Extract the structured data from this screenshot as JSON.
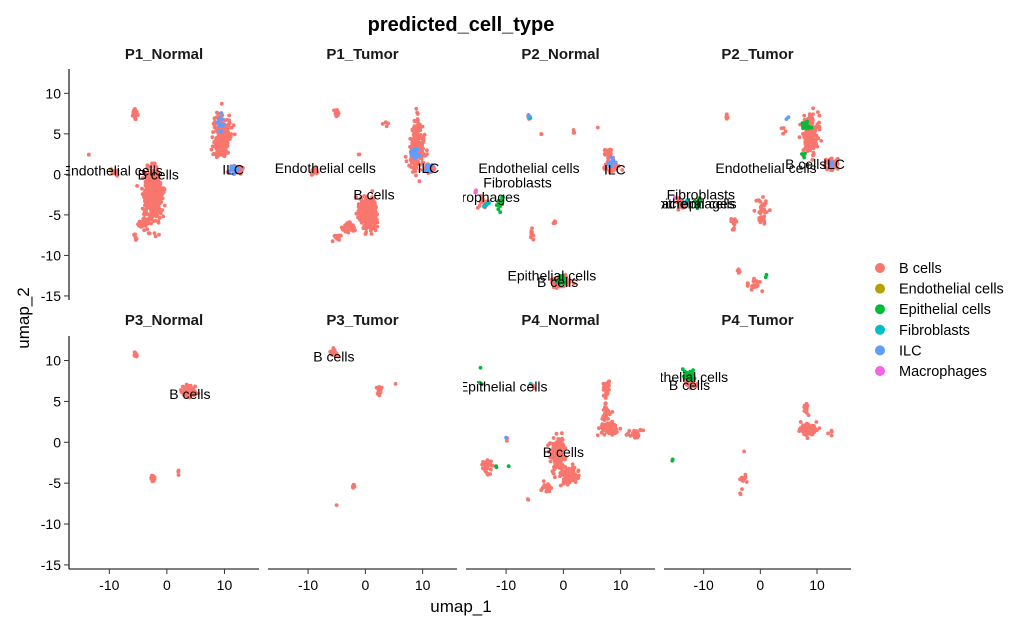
{
  "chart_data": {
    "type": "scatter",
    "title": "predicted_cell_type",
    "xlabel": "umap_1",
    "ylabel": "umap_2",
    "xlim": [
      -17,
      16
    ],
    "ylim": [
      -15.5,
      13
    ],
    "x_ticks": [
      -10,
      0,
      10
    ],
    "y_ticks": [
      10,
      5,
      0,
      -5,
      -10,
      -15
    ],
    "legend": {
      "position": "right",
      "entries": [
        {
          "label": "B cells",
          "color": "#F8766D"
        },
        {
          "label": "Endothelial cells",
          "color": "#B79F00"
        },
        {
          "label": "Epithelial cells",
          "color": "#00BA38"
        },
        {
          "label": "Fibroblasts",
          "color": "#00BFC4"
        },
        {
          "label": "ILC",
          "color": "#619CFF"
        },
        {
          "label": "Macrophages",
          "color": "#F564E3"
        }
      ]
    },
    "panels": [
      {
        "name": "P1_Normal",
        "clusters": [
          {
            "type": "B cells",
            "x": -5.5,
            "y": 7.5,
            "sx": 0.3,
            "sy": 0.5,
            "n": 40
          },
          {
            "type": "B cells",
            "x": -2.5,
            "y": -2.5,
            "sx": 1.4,
            "sy": 2.8,
            "n": 450
          },
          {
            "type": "B cells",
            "x": -4,
            "y": -6,
            "sx": 1.0,
            "sy": 0.4,
            "n": 40
          },
          {
            "type": "B cells",
            "x": -5.5,
            "y": -7.8,
            "sx": 0.3,
            "sy": 0.5,
            "n": 8
          },
          {
            "type": "B cells",
            "x": -9,
            "y": 0.3,
            "sx": 0.6,
            "sy": 0.5,
            "n": 15
          },
          {
            "type": "B cells",
            "x": 9.5,
            "y": 5,
            "sx": 1.3,
            "sy": 2.3,
            "n": 200
          },
          {
            "type": "B cells",
            "x": 9.5,
            "y": 2.8,
            "sx": 0.9,
            "sy": 0.6,
            "n": 60
          },
          {
            "type": "B cells",
            "x": 12,
            "y": 0.6,
            "sx": 1.0,
            "sy": 0.5,
            "n": 35
          },
          {
            "type": "B cells",
            "x": -13.5,
            "y": 2.4,
            "sx": 0.2,
            "sy": 0.2,
            "n": 2
          },
          {
            "type": "ILC",
            "x": 11.5,
            "y": 0.6,
            "sx": 0.6,
            "sy": 0.6,
            "n": 18
          },
          {
            "type": "ILC",
            "x": 9.5,
            "y": 6.5,
            "sx": 0.6,
            "sy": 1.5,
            "n": 12
          },
          {
            "type": "Endothelial cells",
            "x": -9.5,
            "y": 0.5,
            "sx": 0.3,
            "sy": 0.3,
            "n": 1
          }
        ],
        "labels": [
          {
            "text": "Endothelial cells",
            "x": -9.5,
            "y": 0.5
          },
          {
            "text": "B cells",
            "x": -1.5,
            "y": 0
          },
          {
            "text": "ILC",
            "x": 11.5,
            "y": 0.6
          }
        ]
      },
      {
        "name": "P1_Tumor",
        "clusters": [
          {
            "type": "B cells",
            "x": -5,
            "y": 7.5,
            "sx": 0.3,
            "sy": 0.5,
            "n": 30
          },
          {
            "type": "B cells",
            "x": 0.5,
            "y": -4.8,
            "sx": 1.4,
            "sy": 1.6,
            "n": 320
          },
          {
            "type": "B cells",
            "x": -3,
            "y": -6.5,
            "sx": 1.0,
            "sy": 0.5,
            "n": 40
          },
          {
            "type": "B cells",
            "x": -5,
            "y": -7.8,
            "sx": 0.5,
            "sy": 0.4,
            "n": 15
          },
          {
            "type": "B cells",
            "x": -9,
            "y": 0.5,
            "sx": 0.6,
            "sy": 0.5,
            "n": 15
          },
          {
            "type": "B cells",
            "x": 9,
            "y": 3.5,
            "sx": 1.2,
            "sy": 2.5,
            "n": 220
          },
          {
            "type": "B cells",
            "x": 11,
            "y": 0.8,
            "sx": 0.8,
            "sy": 0.5,
            "n": 30
          },
          {
            "type": "B cells",
            "x": 3.5,
            "y": 6.5,
            "sx": 0.7,
            "sy": 0.5,
            "n": 4
          },
          {
            "type": "B cells",
            "x": -1,
            "y": 2.5,
            "sx": 0.3,
            "sy": 0.2,
            "n": 2
          },
          {
            "type": "ILC",
            "x": 11,
            "y": 0.8,
            "sx": 0.6,
            "sy": 0.5,
            "n": 15
          },
          {
            "type": "ILC",
            "x": 8.5,
            "y": 2.5,
            "sx": 0.8,
            "sy": 0.8,
            "n": 15
          }
        ],
        "labels": [
          {
            "text": "Endothelial cells",
            "x": -7,
            "y": 0.8
          },
          {
            "text": "B cells",
            "x": 1.5,
            "y": -2.5
          },
          {
            "text": "ILC",
            "x": 11,
            "y": 0.8
          }
        ]
      },
      {
        "name": "P2_Normal",
        "clusters": [
          {
            "type": "B cells",
            "x": -6,
            "y": 7,
            "sx": 0.2,
            "sy": 0.3,
            "n": 8
          },
          {
            "type": "B cells",
            "x": -4,
            "y": 5,
            "sx": 0.2,
            "sy": 0.2,
            "n": 2
          },
          {
            "type": "B cells",
            "x": 2,
            "y": 5.5,
            "sx": 0.4,
            "sy": 0.4,
            "n": 3
          },
          {
            "type": "B cells",
            "x": 6,
            "y": 5.8,
            "sx": 0.1,
            "sy": 0.1,
            "n": 1
          },
          {
            "type": "B cells",
            "x": 8,
            "y": 2.5,
            "sx": 0.8,
            "sy": 0.6,
            "n": 30
          },
          {
            "type": "B cells",
            "x": 8.5,
            "y": 0.8,
            "sx": 1.5,
            "sy": 0.5,
            "n": 30
          },
          {
            "type": "B cells",
            "x": -5.5,
            "y": -7.5,
            "sx": 0.2,
            "sy": 0.8,
            "n": 10
          },
          {
            "type": "B cells",
            "x": -1.5,
            "y": -6,
            "sx": 0.3,
            "sy": 0.3,
            "n": 6
          },
          {
            "type": "B cells",
            "x": -0.5,
            "y": -13.3,
            "sx": 1.2,
            "sy": 0.5,
            "n": 130
          },
          {
            "type": "B cells",
            "x": -14,
            "y": -3.5,
            "sx": 0.8,
            "sy": 0.6,
            "n": 15
          },
          {
            "type": "Epithelial cells",
            "x": -11,
            "y": -3.5,
            "sx": 0.7,
            "sy": 0.6,
            "n": 15
          },
          {
            "type": "Epithelial cells",
            "x": -0.5,
            "y": -13,
            "sx": 0.8,
            "sy": 0.4,
            "n": 30
          },
          {
            "type": "Epithelial cells",
            "x": -11,
            "y": -4.7,
            "sx": 0.1,
            "sy": 0.1,
            "n": 1
          },
          {
            "type": "Fibroblasts",
            "x": -13.5,
            "y": -3.8,
            "sx": 0.5,
            "sy": 0.4,
            "n": 6
          },
          {
            "type": "Fibroblasts",
            "x": -5.8,
            "y": 7,
            "sx": 0.2,
            "sy": 0.2,
            "n": 2
          },
          {
            "type": "ILC",
            "x": 8.5,
            "y": 1.5,
            "sx": 0.8,
            "sy": 0.8,
            "n": 12
          },
          {
            "type": "ILC",
            "x": -6,
            "y": 7.2,
            "sx": 0.2,
            "sy": 0.2,
            "n": 2
          },
          {
            "type": "Macrophages",
            "x": -15.2,
            "y": -2,
            "sx": 0.3,
            "sy": 0.3,
            "n": 3
          }
        ],
        "labels": [
          {
            "text": "Endothelial cells",
            "x": -6,
            "y": 0.8
          },
          {
            "text": "Fibroblasts",
            "x": -8,
            "y": -1
          },
          {
            "text": "Macrophages",
            "x": -15,
            "y": -2.8
          },
          {
            "text": "Epithelial cells",
            "x": -2,
            "y": -12.5
          },
          {
            "text": "B cells",
            "x": -1,
            "y": -13.3
          },
          {
            "text": "ILC",
            "x": 9,
            "y": 0.6
          }
        ]
      },
      {
        "name": "P2_Tumor",
        "clusters": [
          {
            "type": "B cells",
            "x": -6,
            "y": 7,
            "sx": 0.2,
            "sy": 0.3,
            "n": 8
          },
          {
            "type": "B cells",
            "x": 9,
            "y": 5,
            "sx": 1.3,
            "sy": 2.0,
            "n": 160
          },
          {
            "type": "B cells",
            "x": 12.5,
            "y": 1.3,
            "sx": 1.0,
            "sy": 0.8,
            "n": 60
          },
          {
            "type": "B cells",
            "x": 4,
            "y": 5.5,
            "sx": 0.5,
            "sy": 0.5,
            "n": 4
          },
          {
            "type": "B cells",
            "x": -14,
            "y": -3.5,
            "sx": 0.8,
            "sy": 0.6,
            "n": 20
          },
          {
            "type": "B cells",
            "x": 0.5,
            "y": -4.5,
            "sx": 1.2,
            "sy": 1.4,
            "n": 35
          },
          {
            "type": "B cells",
            "x": -4.5,
            "y": -6,
            "sx": 0.8,
            "sy": 0.6,
            "n": 12
          },
          {
            "type": "B cells",
            "x": -1,
            "y": -13.5,
            "sx": 1.5,
            "sy": 0.7,
            "n": 22
          },
          {
            "type": "B cells",
            "x": -4,
            "y": -12,
            "sx": 0.5,
            "sy": 0.5,
            "n": 4
          },
          {
            "type": "Epithelial cells",
            "x": 8,
            "y": 6,
            "sx": 0.8,
            "sy": 0.8,
            "n": 12
          },
          {
            "type": "Epithelial cells",
            "x": 7.5,
            "y": 2.5,
            "sx": 0.4,
            "sy": 0.4,
            "n": 4
          },
          {
            "type": "Epithelial cells",
            "x": -11,
            "y": -3.5,
            "sx": 0.8,
            "sy": 0.6,
            "n": 15
          },
          {
            "type": "Epithelial cells",
            "x": 1,
            "y": -12.6,
            "sx": 0.2,
            "sy": 0.2,
            "n": 2
          },
          {
            "type": "Fibroblasts",
            "x": -13,
            "y": -3.5,
            "sx": 0.5,
            "sy": 0.4,
            "n": 5
          },
          {
            "type": "ILC",
            "x": 5,
            "y": 7,
            "sx": 0.3,
            "sy": 0.3,
            "n": 2
          },
          {
            "type": "ILC",
            "x": 12.5,
            "y": 1.5,
            "sx": 0.5,
            "sy": 0.5,
            "n": 4
          },
          {
            "type": "Macrophages",
            "x": -15,
            "y": -3,
            "sx": 0.3,
            "sy": 0.3,
            "n": 3
          }
        ],
        "labels": [
          {
            "text": "Endothelial cells",
            "x": 1,
            "y": 0.8
          },
          {
            "text": "B cells",
            "x": 8,
            "y": 1.3
          },
          {
            "text": "ILC",
            "x": 13,
            "y": 1.3
          },
          {
            "text": "Fibroblasts",
            "x": -10.5,
            "y": -2.5
          },
          {
            "text": "Macrophages",
            "x": -12,
            "y": -3.6
          },
          {
            "text": "Epithelial cells",
            "x": -12,
            "y": -3.6
          }
        ]
      },
      {
        "name": "P3_Normal",
        "clusters": [
          {
            "type": "B cells",
            "x": -5.5,
            "y": 10.5,
            "sx": 0.4,
            "sy": 0.4,
            "n": 10
          },
          {
            "type": "B cells",
            "x": 3.8,
            "y": 6.3,
            "sx": 1.0,
            "sy": 0.6,
            "n": 120
          },
          {
            "type": "B cells",
            "x": -2.5,
            "y": -4.5,
            "sx": 0.4,
            "sy": 0.4,
            "n": 14
          },
          {
            "type": "B cells",
            "x": 2,
            "y": -3.5,
            "sx": 0.2,
            "sy": 0.4,
            "n": 3
          }
        ],
        "labels": [
          {
            "text": "B cells",
            "x": 4,
            "y": 5.9
          }
        ]
      },
      {
        "name": "P3_Tumor",
        "clusters": [
          {
            "type": "B cells",
            "x": -5.5,
            "y": 11,
            "sx": 0.6,
            "sy": 0.5,
            "n": 20
          },
          {
            "type": "B cells",
            "x": 2.5,
            "y": 6.5,
            "sx": 0.4,
            "sy": 0.5,
            "n": 22
          },
          {
            "type": "B cells",
            "x": 5,
            "y": 7,
            "sx": 0.2,
            "sy": 0.2,
            "n": 1
          },
          {
            "type": "B cells",
            "x": -2,
            "y": -5.3,
            "sx": 0.3,
            "sy": 0.3,
            "n": 6
          },
          {
            "type": "B cells",
            "x": -5,
            "y": -7.7,
            "sx": 0.1,
            "sy": 0.1,
            "n": 1
          }
        ],
        "labels": [
          {
            "text": "B cells",
            "x": -5.5,
            "y": 10.5
          }
        ]
      },
      {
        "name": "P4_Normal",
        "clusters": [
          {
            "type": "B cells",
            "x": -5.5,
            "y": 7,
            "sx": 0.3,
            "sy": 0.3,
            "n": 2
          },
          {
            "type": "B cells",
            "x": 7.5,
            "y": 6.5,
            "sx": 0.6,
            "sy": 1.0,
            "n": 30
          },
          {
            "type": "B cells",
            "x": 7.5,
            "y": 3.5,
            "sx": 0.6,
            "sy": 1.0,
            "n": 30
          },
          {
            "type": "B cells",
            "x": 8,
            "y": 1.6,
            "sx": 1.3,
            "sy": 0.6,
            "n": 90
          },
          {
            "type": "B cells",
            "x": 12.5,
            "y": 1,
            "sx": 1.3,
            "sy": 0.5,
            "n": 30
          },
          {
            "type": "B cells",
            "x": -1,
            "y": -1.5,
            "sx": 1.0,
            "sy": 1.8,
            "n": 200
          },
          {
            "type": "B cells",
            "x": 1,
            "y": -4,
            "sx": 1.3,
            "sy": 1.0,
            "n": 100
          },
          {
            "type": "B cells",
            "x": -3,
            "y": -5.5,
            "sx": 0.8,
            "sy": 0.5,
            "n": 20
          },
          {
            "type": "B cells",
            "x": -6,
            "y": -7,
            "sx": 0.3,
            "sy": 0.3,
            "n": 2
          },
          {
            "type": "B cells",
            "x": -13.5,
            "y": -3,
            "sx": 0.8,
            "sy": 0.8,
            "n": 25
          },
          {
            "type": "B cells",
            "x": -10,
            "y": 0.5,
            "sx": 0.3,
            "sy": 0.3,
            "n": 2
          },
          {
            "type": "Epithelial cells",
            "x": -14.5,
            "y": 9,
            "sx": 0.2,
            "sy": 0.2,
            "n": 1
          },
          {
            "type": "Epithelial cells",
            "x": -14.5,
            "y": 7.3,
            "sx": 0.3,
            "sy": 0.3,
            "n": 2
          },
          {
            "type": "Epithelial cells",
            "x": -11.8,
            "y": -3,
            "sx": 0.3,
            "sy": 0.2,
            "n": 2
          },
          {
            "type": "Epithelial cells",
            "x": -9.5,
            "y": -2.8,
            "sx": 0.2,
            "sy": 0.2,
            "n": 1
          },
          {
            "type": "Fibroblasts",
            "x": -5.8,
            "y": 7.2,
            "sx": 0.1,
            "sy": 0.1,
            "n": 1
          },
          {
            "type": "ILC",
            "x": -10,
            "y": 0.5,
            "sx": 0.1,
            "sy": 0.1,
            "n": 1
          }
        ],
        "labels": [
          {
            "text": "Epithelial cells",
            "x": -10.5,
            "y": 6.8
          },
          {
            "text": "B cells",
            "x": 0,
            "y": -1.2
          }
        ]
      },
      {
        "name": "P4_Tumor",
        "clusters": [
          {
            "type": "B cells",
            "x": -12.5,
            "y": 7.3,
            "sx": 1.0,
            "sy": 0.8,
            "n": 30
          },
          {
            "type": "B cells",
            "x": 8.5,
            "y": 1.6,
            "sx": 1.2,
            "sy": 0.6,
            "n": 90
          },
          {
            "type": "B cells",
            "x": 8,
            "y": 4,
            "sx": 0.4,
            "sy": 0.8,
            "n": 12
          },
          {
            "type": "B cells",
            "x": 12.5,
            "y": 1.2,
            "sx": 0.5,
            "sy": 0.3,
            "n": 5
          },
          {
            "type": "B cells",
            "x": -3,
            "y": -4.5,
            "sx": 0.6,
            "sy": 0.6,
            "n": 12
          },
          {
            "type": "B cells",
            "x": -3.5,
            "y": -6.2,
            "sx": 0.2,
            "sy": 0.2,
            "n": 2
          },
          {
            "type": "B cells",
            "x": -3,
            "y": -1,
            "sx": 0.2,
            "sy": 0.2,
            "n": 1
          },
          {
            "type": "Epithelial cells",
            "x": -12.5,
            "y": 8.2,
            "sx": 0.9,
            "sy": 0.6,
            "n": 45
          },
          {
            "type": "Epithelial cells",
            "x": -15.5,
            "y": -2.2,
            "sx": 0.2,
            "sy": 0.2,
            "n": 2
          }
        ],
        "labels": [
          {
            "text": "Epithelial cells",
            "x": -13.5,
            "y": 8
          },
          {
            "text": "B cells",
            "x": -12.5,
            "y": 7
          }
        ]
      }
    ]
  }
}
